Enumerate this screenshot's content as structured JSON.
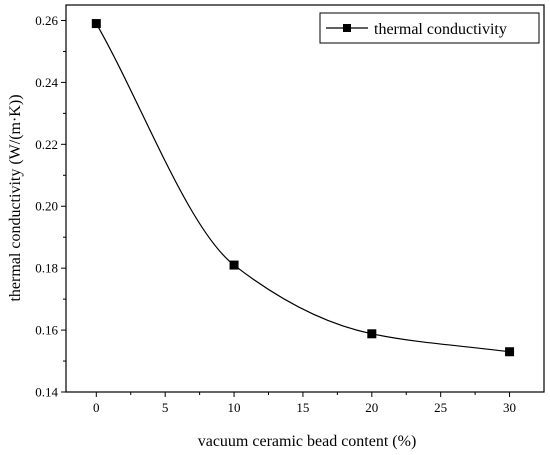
{
  "chart_data": {
    "type": "line",
    "title": "",
    "xlabel": "vacuum ceramic bead content (%)",
    "ylabel": "thermal conductivity (W/(m·K))",
    "xlim": [
      -2.2,
      32.5
    ],
    "ylim": [
      0.14,
      0.265
    ],
    "x_ticks": [
      "0",
      "5",
      "10",
      "15",
      "20",
      "25",
      "30"
    ],
    "y_ticks": [
      "0.14",
      "0.16",
      "0.18",
      "0.20",
      "0.22",
      "0.24",
      "0.26"
    ],
    "legend_position": "top-right",
    "grid": false,
    "series": [
      {
        "name": "thermal conductivity",
        "marker": "square",
        "color": "#000000",
        "smooth": true,
        "x": [
          0,
          10,
          20,
          30
        ],
        "y": [
          0.259,
          0.181,
          0.1588,
          0.153
        ]
      }
    ]
  }
}
